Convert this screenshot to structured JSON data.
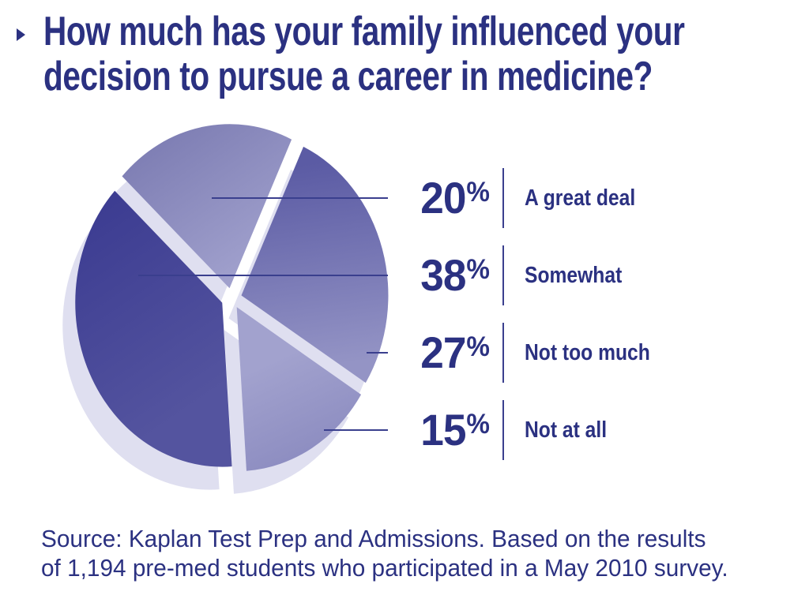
{
  "title": {
    "lines": [
      "How much has your family influenced your",
      "decision to pursue a career in medicine?"
    ]
  },
  "source": {
    "lines": [
      "Source: Kaplan Test Prep and Admissions. Based on the results",
      "of 1,194 pre-med students who participated in a May 2010 survey."
    ]
  },
  "colors": {
    "navy_text": "#2b3181",
    "leader_line": "#3a3f8e",
    "pie_drop_shadow": "#dfdff0",
    "background": "#ffffff"
  },
  "chart_data": {
    "type": "pie",
    "title": "How much has your family influenced your decision to pursue a career in medicine?",
    "unit": "%",
    "items": [
      {
        "label": "A great deal",
        "value": 20,
        "gradient": [
          "#7d7db3",
          "#a2a2ce"
        ]
      },
      {
        "label": "Somewhat",
        "value": 38,
        "gradient": [
          "#3d3d92",
          "#54549f"
        ]
      },
      {
        "label": "Not too much",
        "value": 27,
        "gradient": [
          "#5b5ba4",
          "#9494c5"
        ]
      },
      {
        "label": "Not at all",
        "value": 15,
        "gradient": [
          "#a2a2ce",
          "#8787bd"
        ]
      }
    ],
    "legend_position": "right",
    "style": "exploded wedges with light lavender drop shadow offset down-left; clockwise from north-west: 20, 27, 15, 38",
    "total": 100
  }
}
